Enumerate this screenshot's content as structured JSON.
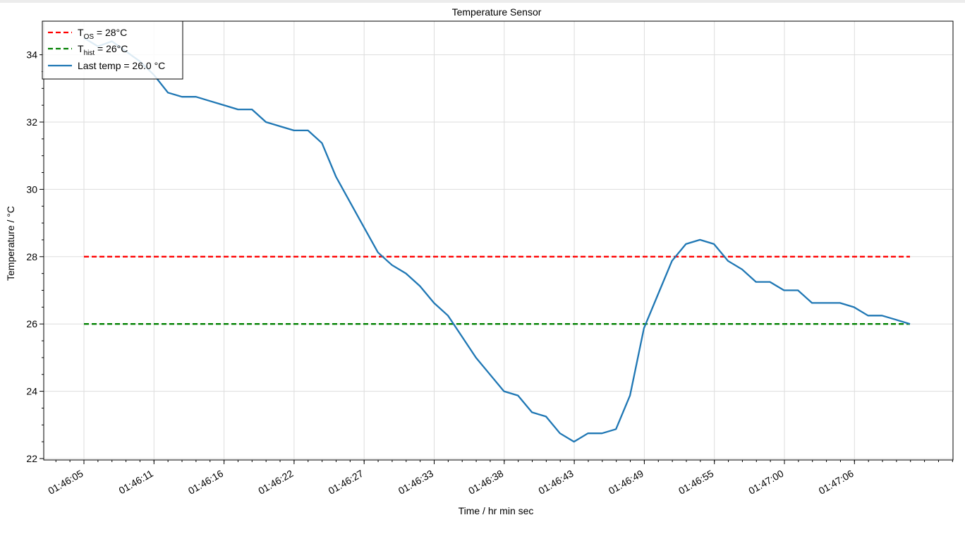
{
  "chart_data": {
    "type": "line",
    "title": "Temperature Sensor",
    "xlabel": "Time / hr min sec",
    "ylabel": "Temperature / °C",
    "ylim": [
      22,
      35
    ],
    "y_ticks": [
      22,
      24,
      26,
      28,
      30,
      32,
      34
    ],
    "x_tick_labels": [
      "01:46:05",
      "01:46:11",
      "01:46:16",
      "01:46:22",
      "01:46:27",
      "01:46:33",
      "01:46:38",
      "01:46:43",
      "01:46:49",
      "01:46:55",
      "01:47:00",
      "01:47:06"
    ],
    "grid": true,
    "legend_position": "top-left",
    "legend": {
      "tos": {
        "symbol": "T",
        "subscript": "OS",
        "rest": " = 28°C"
      },
      "thist": {
        "symbol": "T",
        "subscript": "hist",
        "rest": " = 26°C"
      },
      "last": "Last temp = 26.0 °C"
    },
    "series": [
      {
        "color": "#ff0000",
        "style": "dashed",
        "values": [
          28,
          28
        ]
      },
      {
        "color": "#008000",
        "style": "dashed",
        "values": [
          26,
          26
        ]
      },
      {
        "color": "#1f77b4",
        "style": "solid",
        "values": [
          34.5,
          34.25,
          34.4,
          34.1,
          33.8,
          33.4,
          32.875,
          32.75,
          32.75,
          32.625,
          32.5,
          32.375,
          32.375,
          32.0,
          31.875,
          31.75,
          31.75,
          31.375,
          30.375,
          29.625,
          28.875,
          28.125,
          27.75,
          27.5,
          27.125,
          26.625,
          26.25,
          25.625,
          25.0,
          24.5,
          24.0,
          23.875,
          23.375,
          23.25,
          22.75,
          22.5,
          22.75,
          22.75,
          22.875,
          23.875,
          25.875,
          26.875,
          27.875,
          28.375,
          28.5,
          28.375,
          27.875,
          27.625,
          27.25,
          27.25,
          27.0,
          27.0,
          26.625,
          26.625,
          26.625,
          26.5,
          26.25,
          26.25,
          26.125,
          26.0
        ]
      }
    ]
  }
}
